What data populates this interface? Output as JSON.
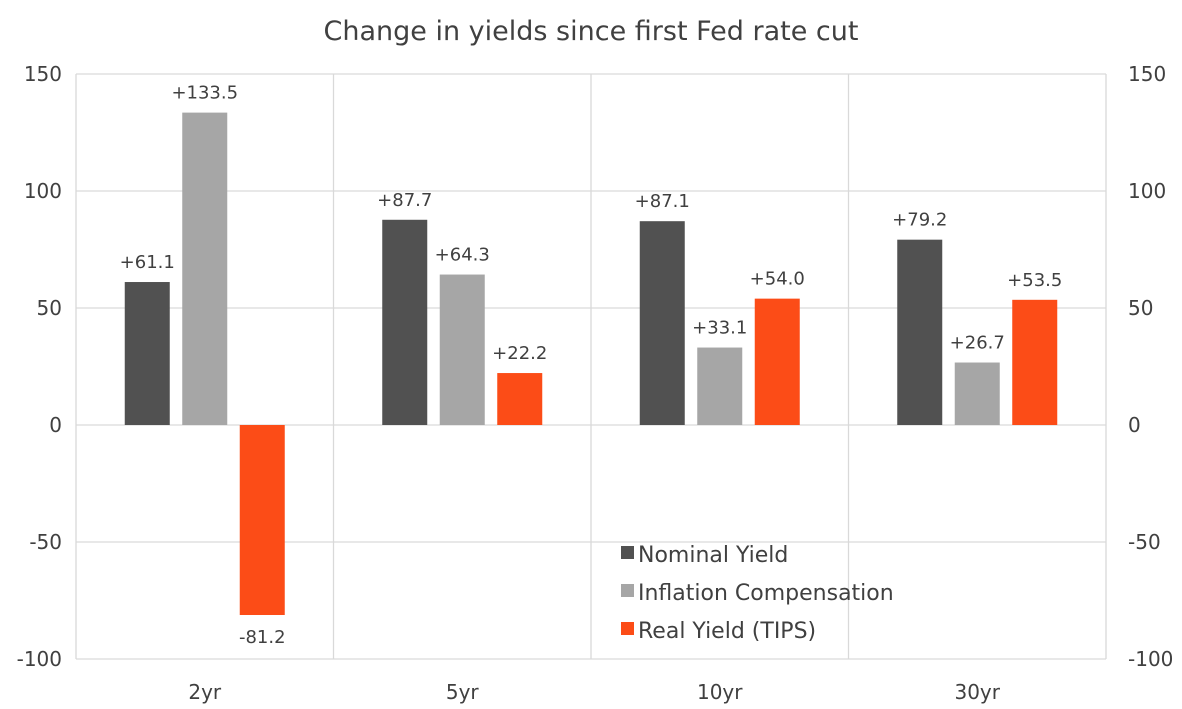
{
  "chart_data": {
    "type": "bar",
    "title": "Change in yields since first Fed rate cut",
    "categories": [
      "2yr",
      "5yr",
      "10yr",
      "30yr"
    ],
    "series": [
      {
        "name": "Nominal Yield",
        "color": "#515151",
        "values": [
          61.1,
          87.7,
          87.1,
          79.2
        ],
        "labels": [
          "+61.1",
          "+87.7",
          "+87.1",
          "+79.2"
        ]
      },
      {
        "name": "Inflation Compensation",
        "color": "#a6a6a6",
        "values": [
          133.5,
          64.3,
          33.1,
          26.7
        ],
        "labels": [
          "+133.5",
          "+64.3",
          "+33.1",
          "+26.7"
        ]
      },
      {
        "name": "Real Yield (TIPS)",
        "color": "#fc4c17",
        "values": [
          -81.2,
          22.2,
          54.0,
          53.5
        ],
        "labels": [
          "-81.2",
          "+22.2",
          "+54.0",
          "+53.5"
        ]
      }
    ],
    "ylim": [
      -100,
      150
    ],
    "yticks": [
      150,
      100,
      50,
      0,
      -50,
      -100
    ],
    "secondary_yticks": [
      150,
      100,
      50,
      0,
      -50,
      -100
    ],
    "xlabel": "",
    "ylabel": "",
    "grid": true,
    "legend_position": "bottom-center"
  }
}
